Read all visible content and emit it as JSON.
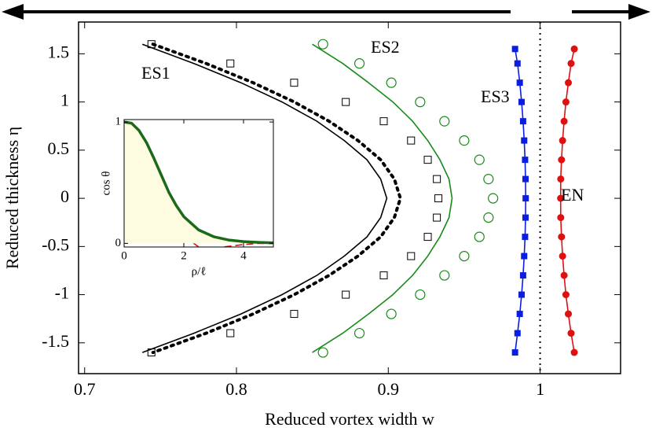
{
  "chart_data": [
    {
      "type": "line",
      "xlabel": "Reduced vortex width w",
      "ylabel": "Reduced thickness η",
      "xlim": [
        0.696,
        1.053
      ],
      "ylim": [
        -1.82,
        1.83
      ],
      "xticks": [
        0.7,
        0.8,
        0.9,
        1
      ],
      "yticks": [
        -1.5,
        -1,
        -0.5,
        0,
        0.5,
        1,
        1.5
      ],
      "reference_x": 1,
      "annotations": [
        "ES1",
        "ES2",
        "ES3",
        "EN"
      ],
      "series": [
        {
          "style": "line",
          "color": "#000000",
          "x": [
            0.738,
            0.772,
            0.803,
            0.83,
            0.853,
            0.871,
            0.886,
            0.895,
            0.899,
            0.895,
            0.886,
            0.871,
            0.853,
            0.83,
            0.803,
            0.772,
            0.738
          ],
          "values": [
            1.6,
            1.4,
            1.2,
            1.0,
            0.8,
            0.6,
            0.4,
            0.2,
            0,
            -0.2,
            -0.4,
            -0.6,
            -0.8,
            -1.0,
            -1.2,
            -1.4,
            -1.6
          ]
        },
        {
          "style": "dotted",
          "color": "#000000",
          "x": [
            0.745,
            0.78,
            0.811,
            0.838,
            0.861,
            0.88,
            0.895,
            0.904,
            0.908,
            0.904,
            0.895,
            0.88,
            0.861,
            0.838,
            0.811,
            0.78,
            0.745
          ],
          "values": [
            1.6,
            1.4,
            1.2,
            1.0,
            0.8,
            0.6,
            0.4,
            0.2,
            0,
            -0.2,
            -0.4,
            -0.6,
            -0.8,
            -1.0,
            -1.2,
            -1.4,
            -1.6
          ]
        },
        {
          "style": "open-square",
          "color": "#000000",
          "x": [
            0.744,
            0.796,
            0.838,
            0.872,
            0.897,
            0.915,
            0.926,
            0.932,
            0.933,
            0.932,
            0.926,
            0.915,
            0.897,
            0.872,
            0.838,
            0.796,
            0.744
          ],
          "values": [
            1.6,
            1.4,
            1.2,
            1.0,
            0.8,
            0.6,
            0.4,
            0.2,
            0,
            -0.2,
            -0.4,
            -0.6,
            -0.8,
            -1.0,
            -1.2,
            -1.4,
            -1.6
          ]
        },
        {
          "style": "line",
          "color": "#1a8a1a",
          "x": [
            0.85,
            0.87,
            0.887,
            0.903,
            0.916,
            0.926,
            0.934,
            0.94,
            0.942,
            0.94,
            0.934,
            0.926,
            0.916,
            0.903,
            0.887,
            0.87,
            0.85
          ],
          "values": [
            1.6,
            1.4,
            1.2,
            1.0,
            0.8,
            0.6,
            0.4,
            0.2,
            0,
            -0.2,
            -0.4,
            -0.6,
            -0.8,
            -1.0,
            -1.2,
            -1.4,
            -1.6
          ]
        },
        {
          "style": "open-circle",
          "color": "#1a8a1a",
          "x": [
            0.857,
            0.881,
            0.902,
            0.921,
            0.937,
            0.95,
            0.96,
            0.966,
            0.969,
            0.966,
            0.96,
            0.95,
            0.937,
            0.921,
            0.902,
            0.881,
            0.857
          ],
          "values": [
            1.6,
            1.4,
            1.2,
            1.0,
            0.8,
            0.6,
            0.4,
            0.2,
            0,
            -0.2,
            -0.4,
            -0.6,
            -0.8,
            -1.0,
            -1.2,
            -1.4,
            -1.6
          ]
        },
        {
          "style": "line-square",
          "color": "#0a1ee0",
          "x": [
            0.9835,
            0.9851,
            0.9866,
            0.9878,
            0.9888,
            0.9895,
            0.9901,
            0.9904,
            0.9905,
            0.9904,
            0.9901,
            0.9895,
            0.9888,
            0.9878,
            0.9866,
            0.9851,
            0.9835
          ],
          "values": [
            1.55,
            1.4,
            1.2,
            1.0,
            0.8,
            0.6,
            0.4,
            0.2,
            0,
            -0.2,
            -0.4,
            -0.6,
            -0.8,
            -1.0,
            -1.2,
            -1.4,
            -1.6
          ]
        },
        {
          "style": "line-circle",
          "color": "#e01010",
          "x": [
            1.0225,
            1.0204,
            1.0186,
            1.017,
            1.0158,
            1.0148,
            1.0141,
            1.0136,
            1.0135,
            1.0136,
            1.0141,
            1.0148,
            1.0158,
            1.017,
            1.0186,
            1.0204,
            1.0225
          ],
          "values": [
            1.55,
            1.4,
            1.2,
            1.0,
            0.8,
            0.6,
            0.4,
            0.2,
            0,
            -0.2,
            -0.4,
            -0.6,
            -0.8,
            -1.0,
            -1.2,
            -1.4,
            -1.6
          ]
        }
      ]
    },
    {
      "type": "line",
      "xlabel": "ρ/ℓ",
      "ylabel": "cos θ",
      "xlim": [
        0,
        5
      ],
      "ylim": [
        -0.03,
        1.02
      ],
      "xticks": [
        0,
        2,
        4
      ],
      "yticks": [
        0,
        1
      ],
      "series": [
        {
          "style": "dashed",
          "color": "#e01010",
          "x": [
            0,
            0.25,
            0.5,
            0.75,
            1,
            1.25,
            1.5,
            1.75,
            2,
            2.5,
            3,
            3.5,
            4,
            4.5,
            5
          ],
          "values": [
            1,
            0.98,
            0.91,
            0.78,
            0.62,
            0.45,
            0.29,
            0.16,
            0.06,
            -0.03,
            -0.04,
            -0.025,
            -0.01,
            0,
            0
          ]
        },
        {
          "style": "thick-filled",
          "color": "#1a6a1a",
          "fill": "#fdfbe0",
          "x": [
            0,
            0.25,
            0.5,
            0.75,
            1,
            1.25,
            1.5,
            1.75,
            2,
            2.5,
            3,
            3.5,
            4,
            4.5,
            5
          ],
          "values": [
            1,
            0.99,
            0.93,
            0.83,
            0.7,
            0.56,
            0.42,
            0.31,
            0.22,
            0.11,
            0.055,
            0.028,
            0.015,
            0.008,
            0.004
          ]
        }
      ]
    }
  ]
}
